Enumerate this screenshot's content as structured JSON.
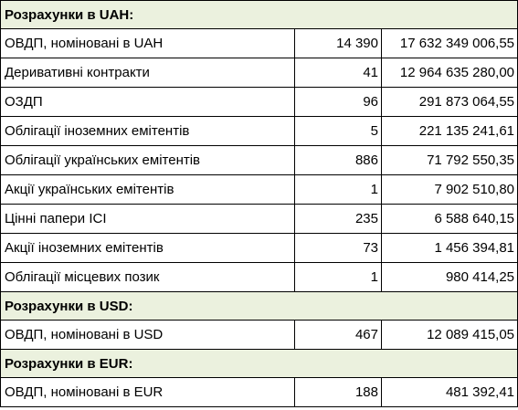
{
  "sections": [
    {
      "title": "Розрахунки в UAH:",
      "rows": [
        {
          "name": "ОВДП, номіновані в UAH",
          "count": "14 390",
          "amount": "17 632 349 006,55"
        },
        {
          "name": "Деривативні контракти",
          "count": "41",
          "amount": "12 964 635 280,00"
        },
        {
          "name": "ОЗДП",
          "count": "96",
          "amount": "291 873 064,55"
        },
        {
          "name": "Облігації іноземних емітентів",
          "count": "5",
          "amount": "221 135 241,61"
        },
        {
          "name": "Облігації українських емітентів",
          "count": "886",
          "amount": "71 792 550,35"
        },
        {
          "name": "Акції українських емітентів",
          "count": "1",
          "amount": "7 902 510,80"
        },
        {
          "name": "Цінні папери ІСІ",
          "count": "235",
          "amount": "6 588 640,15"
        },
        {
          "name": "Акції іноземних емітентів",
          "count": "73",
          "amount": "1 456 394,81"
        },
        {
          "name": "Облігації місцевих позик",
          "count": "1",
          "amount": "980 414,25"
        }
      ]
    },
    {
      "title": "Розрахунки в USD:",
      "rows": [
        {
          "name": "ОВДП, номіновані в USD",
          "count": "467",
          "amount": "12 089 415,05"
        }
      ]
    },
    {
      "title": "Розрахунки в EUR:",
      "rows": [
        {
          "name": "ОВДП, номіновані в EUR",
          "count": "188",
          "amount": "481 392,41"
        }
      ]
    }
  ]
}
